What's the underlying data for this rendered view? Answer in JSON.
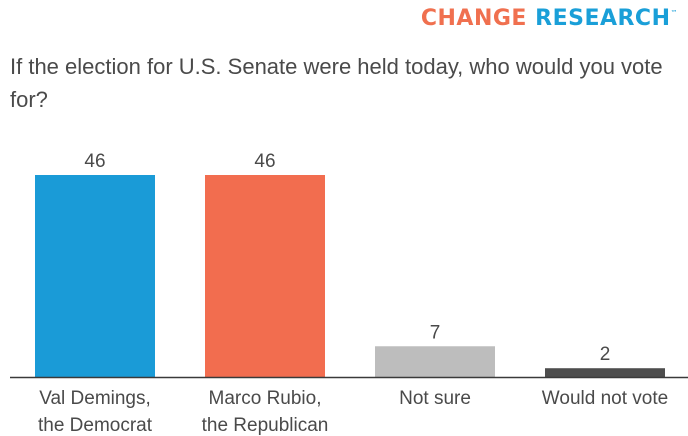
{
  "brand": {
    "word1": "CHANGE",
    "word2": "RESEARCH",
    "tm": "™",
    "colors": {
      "primary": "#f0704f",
      "secondary": "#1a9fd8"
    }
  },
  "chart_data": {
    "type": "bar",
    "title": "If the election for U.S. Senate were held today, who would you vote for?",
    "categories": [
      [
        "Val Demings,",
        "the Democrat"
      ],
      [
        "Marco Rubio,",
        "the Republican"
      ],
      [
        "Not sure"
      ],
      [
        "Would not vote"
      ]
    ],
    "values": [
      46,
      46,
      7,
      2
    ],
    "colors": [
      "#1a9bd7",
      "#f26d4f",
      "#bdbdbd",
      "#4d4d4d"
    ],
    "ylim": [
      0,
      46
    ],
    "grid": false,
    "legend": "none"
  }
}
